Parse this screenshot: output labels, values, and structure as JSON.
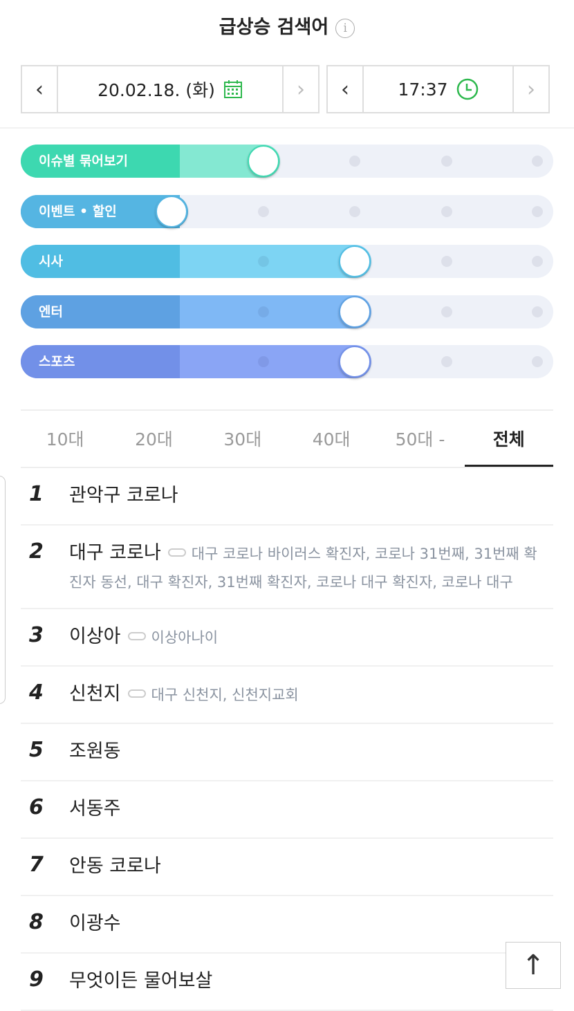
{
  "title": "급상승 검색어",
  "info_icon": "info-icon",
  "date": {
    "value": "20.02.18. (화)",
    "icon": "calendar-icon"
  },
  "time": {
    "value": "17:37",
    "icon": "clock-icon"
  },
  "accent": "#2db84d",
  "sliders": [
    {
      "label": "이슈별 묶어보기",
      "level": 2,
      "steps": 5,
      "color": "#3dd8b0",
      "fill": "#84e8d2"
    },
    {
      "label": "이벤트 • 할인",
      "level": 1,
      "steps": 5,
      "color": "#55b5e2",
      "fill": "#55b5e2"
    },
    {
      "label": "시사",
      "level": 3,
      "steps": 5,
      "color": "#50bde3",
      "fill": "#7dd4f3"
    },
    {
      "label": "엔터",
      "level": 3,
      "steps": 5,
      "color": "#5ea1e2",
      "fill": "#7fb8f5"
    },
    {
      "label": "스포츠",
      "level": 3,
      "steps": 5,
      "color": "#7290e8",
      "fill": "#8aa5f5"
    }
  ],
  "age_tabs": [
    {
      "label": "10대"
    },
    {
      "label": "20대"
    },
    {
      "label": "30대"
    },
    {
      "label": "40대"
    },
    {
      "label": "50대 -"
    },
    {
      "label": "전체",
      "active": true
    }
  ],
  "keywords": [
    {
      "rank": "1",
      "keyword": "관악구 코로나"
    },
    {
      "rank": "2",
      "keyword": "대구 코로나",
      "related": "대구 코로나 바이러스 확진자, 코로나 31번째, 31번째 확진자 동선, 대구 확진자, 31번째 확진자, 코로나 대구 확진자, 코로나 대구"
    },
    {
      "rank": "3",
      "keyword": "이상아",
      "related": "이상아나이"
    },
    {
      "rank": "4",
      "keyword": "신천지",
      "related": "대구 신천지, 신천지교회"
    },
    {
      "rank": "5",
      "keyword": "조원동"
    },
    {
      "rank": "6",
      "keyword": "서동주"
    },
    {
      "rank": "7",
      "keyword": "안동 코로나"
    },
    {
      "rank": "8",
      "keyword": "이광수"
    },
    {
      "rank": "9",
      "keyword": "무엇이든 물어보살"
    }
  ],
  "scroll_top_icon": "arrow-up-icon"
}
